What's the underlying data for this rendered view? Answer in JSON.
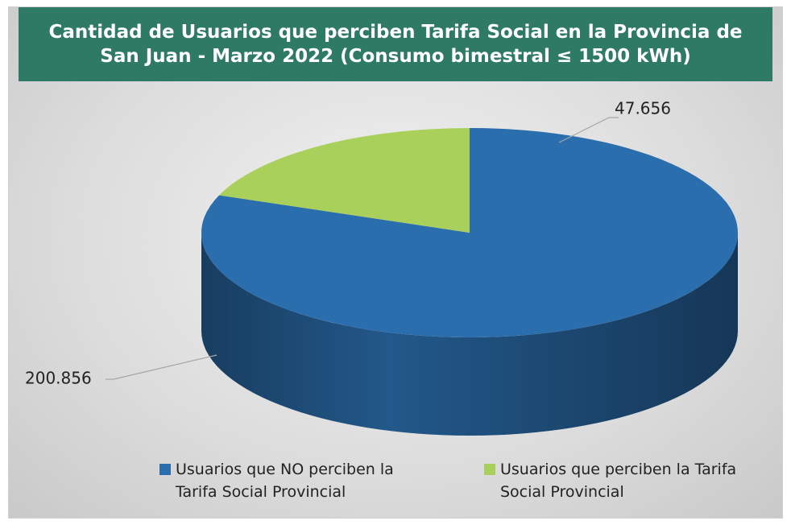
{
  "chart_data": {
    "type": "pie",
    "title": "Cantidad de Usuarios que perciben Tarifa Social en la Provincia de San Juan - Marzo 2022 (Consumo bimestral ≤ 1500 kWh)",
    "categories": [
      "Usuarios que NO perciben la Tarifa Social Provincial",
      "Usuarios que perciben la Tarifa Social Provincial"
    ],
    "values": [
      200856,
      47656
    ],
    "value_labels": [
      "200.856",
      "47.656"
    ],
    "colors": [
      "#2b6ead",
      "#a9d05a"
    ],
    "legend": "bottom"
  }
}
